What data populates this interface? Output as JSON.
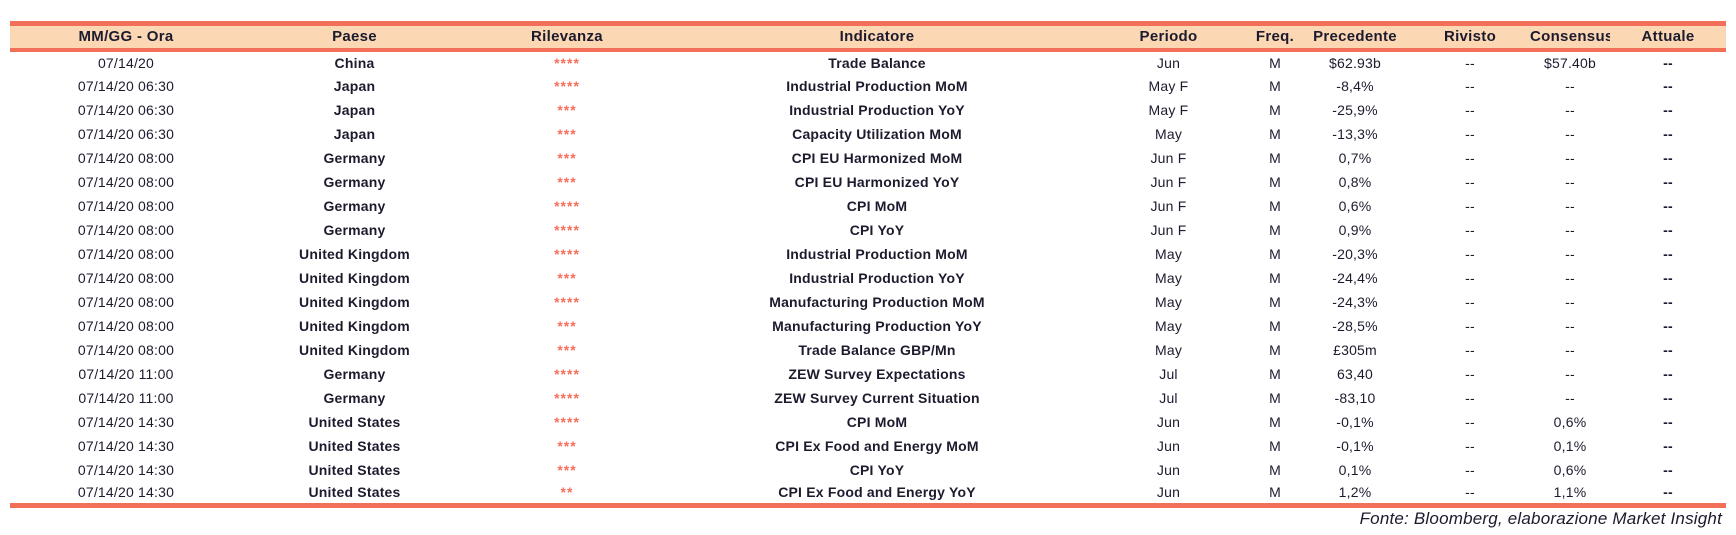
{
  "table": {
    "columns": [
      {
        "key": "date",
        "label": "MM/GG - Ora"
      },
      {
        "key": "country",
        "label": "Paese"
      },
      {
        "key": "relevance",
        "label": "Rilevanza"
      },
      {
        "key": "indicator",
        "label": "Indicatore"
      },
      {
        "key": "period",
        "label": "Periodo"
      },
      {
        "key": "freq",
        "label": "Freq."
      },
      {
        "key": "previous",
        "label": "Precedente"
      },
      {
        "key": "revised",
        "label": "Rivisto"
      },
      {
        "key": "consensus",
        "label": "Consensus"
      },
      {
        "key": "actual",
        "label": "Attuale"
      }
    ],
    "rows": [
      {
        "date": "07/14/20",
        "country": "China",
        "relevance": "****",
        "indicator": "Trade Balance",
        "period": "Jun",
        "freq": "M",
        "previous": "$62.93b",
        "revised": "--",
        "consensus": "$57.40b",
        "actual": "--"
      },
      {
        "date": "07/14/20 06:30",
        "country": "Japan",
        "relevance": "****",
        "indicator": "Industrial Production MoM",
        "period": "May F",
        "freq": "M",
        "previous": "-8,4%",
        "revised": "--",
        "consensus": "--",
        "actual": "--"
      },
      {
        "date": "07/14/20 06:30",
        "country": "Japan",
        "relevance": "***",
        "indicator": "Industrial Production YoY",
        "period": "May F",
        "freq": "M",
        "previous": "-25,9%",
        "revised": "--",
        "consensus": "--",
        "actual": "--"
      },
      {
        "date": "07/14/20 06:30",
        "country": "Japan",
        "relevance": "***",
        "indicator": "Capacity Utilization MoM",
        "period": "May",
        "freq": "M",
        "previous": "-13,3%",
        "revised": "--",
        "consensus": "--",
        "actual": "--"
      },
      {
        "date": "07/14/20 08:00",
        "country": "Germany",
        "relevance": "***",
        "indicator": "CPI EU Harmonized MoM",
        "period": "Jun F",
        "freq": "M",
        "previous": "0,7%",
        "revised": "--",
        "consensus": "--",
        "actual": "--"
      },
      {
        "date": "07/14/20 08:00",
        "country": "Germany",
        "relevance": "***",
        "indicator": "CPI EU Harmonized YoY",
        "period": "Jun F",
        "freq": "M",
        "previous": "0,8%",
        "revised": "--",
        "consensus": "--",
        "actual": "--"
      },
      {
        "date": "07/14/20 08:00",
        "country": "Germany",
        "relevance": "****",
        "indicator": "CPI MoM",
        "period": "Jun F",
        "freq": "M",
        "previous": "0,6%",
        "revised": "--",
        "consensus": "--",
        "actual": "--"
      },
      {
        "date": "07/14/20 08:00",
        "country": "Germany",
        "relevance": "****",
        "indicator": "CPI YoY",
        "period": "Jun F",
        "freq": "M",
        "previous": "0,9%",
        "revised": "--",
        "consensus": "--",
        "actual": "--"
      },
      {
        "date": "07/14/20 08:00",
        "country": "United Kingdom",
        "relevance": "****",
        "indicator": "Industrial Production MoM",
        "period": "May",
        "freq": "M",
        "previous": "-20,3%",
        "revised": "--",
        "consensus": "--",
        "actual": "--"
      },
      {
        "date": "07/14/20 08:00",
        "country": "United Kingdom",
        "relevance": "***",
        "indicator": "Industrial Production YoY",
        "period": "May",
        "freq": "M",
        "previous": "-24,4%",
        "revised": "--",
        "consensus": "--",
        "actual": "--"
      },
      {
        "date": "07/14/20 08:00",
        "country": "United Kingdom",
        "relevance": "****",
        "indicator": "Manufacturing Production MoM",
        "period": "May",
        "freq": "M",
        "previous": "-24,3%",
        "revised": "--",
        "consensus": "--",
        "actual": "--"
      },
      {
        "date": "07/14/20 08:00",
        "country": "United Kingdom",
        "relevance": "***",
        "indicator": "Manufacturing Production YoY",
        "period": "May",
        "freq": "M",
        "previous": "-28,5%",
        "revised": "--",
        "consensus": "--",
        "actual": "--"
      },
      {
        "date": "07/14/20 08:00",
        "country": "United Kingdom",
        "relevance": "***",
        "indicator": "Trade Balance GBP/Mn",
        "period": "May",
        "freq": "M",
        "previous": "£305m",
        "revised": "--",
        "consensus": "--",
        "actual": "--"
      },
      {
        "date": "07/14/20 11:00",
        "country": "Germany",
        "relevance": "****",
        "indicator": "ZEW Survey Expectations",
        "period": "Jul",
        "freq": "M",
        "previous": "63,40",
        "revised": "--",
        "consensus": "--",
        "actual": "--"
      },
      {
        "date": "07/14/20 11:00",
        "country": "Germany",
        "relevance": "****",
        "indicator": "ZEW Survey Current Situation",
        "period": "Jul",
        "freq": "M",
        "previous": "-83,10",
        "revised": "--",
        "consensus": "--",
        "actual": "--"
      },
      {
        "date": "07/14/20 14:30",
        "country": "United States",
        "relevance": "****",
        "indicator": "CPI MoM",
        "period": "Jun",
        "freq": "M",
        "previous": "-0,1%",
        "revised": "--",
        "consensus": "0,6%",
        "actual": "--"
      },
      {
        "date": "07/14/20 14:30",
        "country": "United States",
        "relevance": "***",
        "indicator": "CPI Ex Food and Energy MoM",
        "period": "Jun",
        "freq": "M",
        "previous": "-0,1%",
        "revised": "--",
        "consensus": "0,1%",
        "actual": "--"
      },
      {
        "date": "07/14/20 14:30",
        "country": "United States",
        "relevance": "***",
        "indicator": "CPI YoY",
        "period": "Jun",
        "freq": "M",
        "previous": "0,1%",
        "revised": "--",
        "consensus": "0,6%",
        "actual": "--"
      },
      {
        "date": "07/14/20 14:30",
        "country": "United States",
        "relevance": "**",
        "indicator": "CPI Ex Food and Energy YoY",
        "period": "Jun",
        "freq": "M",
        "previous": "1,2%",
        "revised": "--",
        "consensus": "1,1%",
        "actual": "--"
      }
    ]
  },
  "footer": {
    "source": "Fonte: Bloomberg, elaborazione Market Insight"
  },
  "colors": {
    "accent": "#f2705a",
    "header_bg": "#fbd7b4",
    "text": "#1c1b2e",
    "stars": "#f4705c"
  }
}
